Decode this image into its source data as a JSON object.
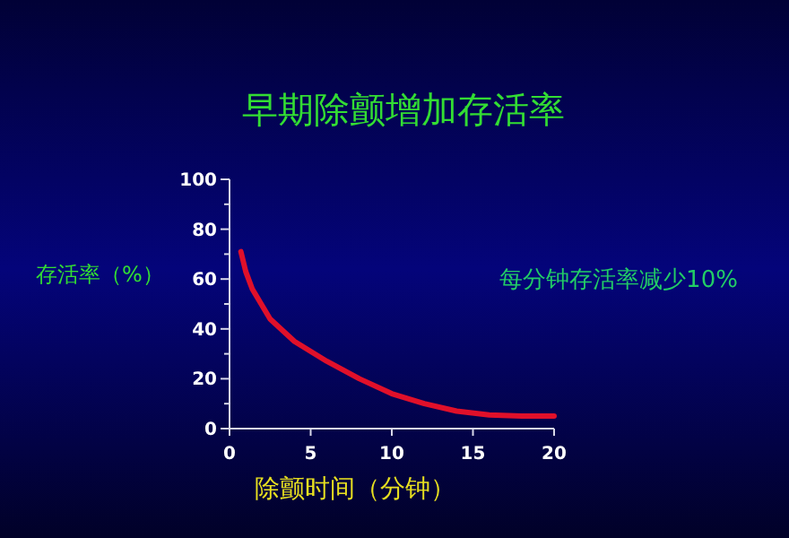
{
  "chart_data": {
    "type": "line",
    "title": "早期除颤增加存活率",
    "xlabel": "除颤时间（分钟）",
    "ylabel": "存活率（%）",
    "annotations": [
      "每分钟存活率减少10%"
    ],
    "x": [
      0.7,
      1,
      1.4,
      2.5,
      4,
      6,
      8,
      10,
      12,
      14,
      16,
      18,
      20
    ],
    "series": [
      {
        "color": "#e0102a",
        "values": [
          71,
          63,
          56,
          44,
          35,
          27,
          20,
          14,
          10,
          7,
          5.5,
          5,
          5
        ]
      }
    ],
    "xlim": [
      0,
      20
    ],
    "ylim": [
      0,
      100
    ],
    "xticks": [
      0,
      5,
      10,
      15,
      20
    ],
    "yticks": [
      0,
      {
        "value": 10,
        "label": null
      },
      20,
      {
        "value": 30,
        "label": null
      },
      40,
      {
        "value": 50,
        "label": null
      },
      60,
      {
        "value": 70,
        "label": null
      },
      80,
      {
        "value": 90,
        "label": null
      },
      100
    ],
    "marker": "none",
    "line_style": "solid"
  }
}
